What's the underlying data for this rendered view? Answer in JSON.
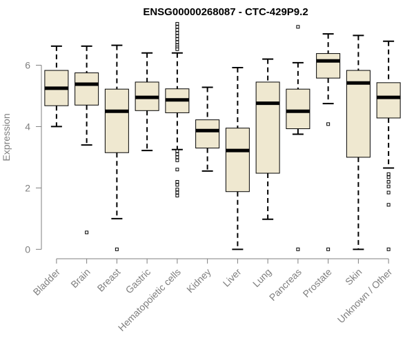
{
  "chart_data": {
    "type": "boxplot",
    "title": "ENSG00000268087 - CTC-429P9.2",
    "xlabel": "",
    "ylabel": "Expression",
    "ylim": [
      -0.15,
      7.45
    ],
    "yticks": [
      0,
      2,
      4,
      6
    ],
    "box_fill": "#efe8d0",
    "median_color": "#000000",
    "axis_color": "#7f7f7f",
    "categories": [
      "Bladder",
      "Brain",
      "Breast",
      "Gastric",
      "Hematopoietic cells",
      "Kidney",
      "Liver",
      "Lung",
      "Pancreas",
      "Prostate",
      "Skin",
      "Unknown / Other"
    ],
    "boxes": [
      {
        "whisker_low": 4.0,
        "q1": 4.68,
        "median": 5.25,
        "q3": 5.83,
        "whisker_high": 6.62,
        "outliers": []
      },
      {
        "whisker_low": 3.4,
        "q1": 4.7,
        "median": 5.38,
        "q3": 5.75,
        "whisker_high": 6.62,
        "outliers": [
          0.55
        ]
      },
      {
        "whisker_low": 1.0,
        "q1": 3.15,
        "median": 4.5,
        "q3": 5.22,
        "whisker_high": 6.65,
        "outliers": [
          0.0
        ]
      },
      {
        "whisker_low": 3.22,
        "q1": 4.52,
        "median": 4.95,
        "q3": 5.45,
        "whisker_high": 6.4,
        "outliers": []
      },
      {
        "whisker_low": 3.25,
        "q1": 4.45,
        "median": 4.87,
        "q3": 5.23,
        "whisker_high": 6.4,
        "outliers": [
          7.35,
          7.25,
          7.15,
          7.05,
          6.95,
          6.85,
          6.75,
          6.65,
          6.58,
          6.52,
          3.2,
          3.1,
          3.0,
          2.9,
          2.6,
          2.2,
          2.1,
          1.95,
          1.85,
          1.75
        ]
      },
      {
        "whisker_low": 2.55,
        "q1": 3.3,
        "median": 3.87,
        "q3": 4.22,
        "whisker_high": 5.28,
        "outliers": []
      },
      {
        "whisker_low": 0.0,
        "q1": 1.88,
        "median": 3.22,
        "q3": 3.95,
        "whisker_high": 5.92,
        "outliers": []
      },
      {
        "whisker_low": 0.98,
        "q1": 2.48,
        "median": 4.76,
        "q3": 5.45,
        "whisker_high": 6.2,
        "outliers": []
      },
      {
        "whisker_low": 3.75,
        "q1": 3.93,
        "median": 4.5,
        "q3": 5.22,
        "whisker_high": 6.08,
        "outliers": [
          7.25,
          0.0
        ]
      },
      {
        "whisker_low": 4.75,
        "q1": 5.58,
        "median": 6.14,
        "q3": 6.38,
        "whisker_high": 7.02,
        "outliers": [
          4.08,
          0.0
        ]
      },
      {
        "whisker_low": 0.0,
        "q1": 3.0,
        "median": 5.42,
        "q3": 5.83,
        "whisker_high": 6.97,
        "outliers": []
      },
      {
        "whisker_low": 2.65,
        "q1": 4.28,
        "median": 4.95,
        "q3": 5.43,
        "whisker_high": 6.78,
        "outliers": [
          2.45,
          2.35,
          2.2,
          2.05,
          1.85,
          1.45,
          0.0
        ]
      }
    ]
  }
}
